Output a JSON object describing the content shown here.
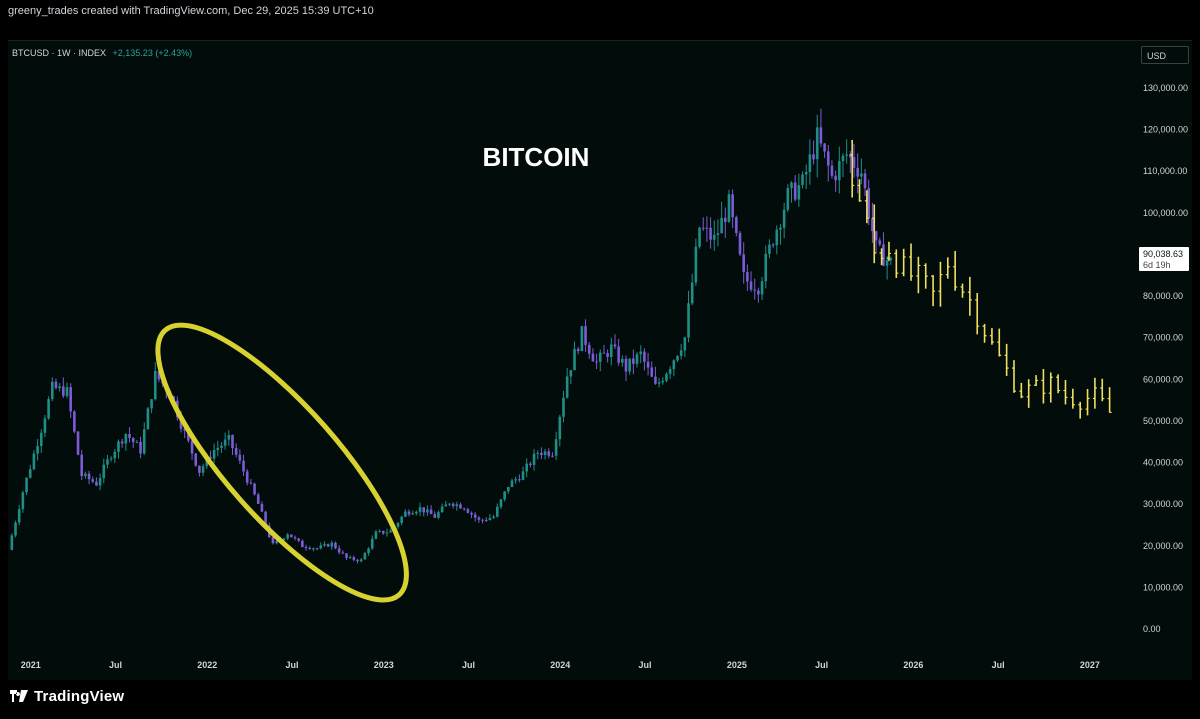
{
  "header": {
    "caption": "greeny_trades created with TradingView.com, Dec 29, 2025 15:39 UTC+10"
  },
  "symbol": {
    "name": "BTCUSD · 1W · INDEX",
    "change": "+2,135.23 (+2.43%)"
  },
  "currency_button": "USD",
  "price_badge": {
    "value": "90,038.63",
    "countdown": "6d 19h"
  },
  "brand": "TradingView",
  "colors": {
    "background": "#020c0b",
    "up_candle": "#1f8f86",
    "down_candle": "#7b5cd6",
    "projection": "#f0e060",
    "annotation_ellipse": "#d8d230"
  },
  "chart_data": {
    "type": "candlestick",
    "title": "BITCOIN",
    "y_ticks": [
      "130,000.00",
      "120,000.00",
      "110,000.00",
      "100,000.00",
      "80,000.00",
      "70,000.00",
      "60,000.00",
      "50,000.00",
      "40,000.00",
      "30,000.00",
      "20,000.00",
      "10,000.00",
      "0.00"
    ],
    "y_tick_values": [
      130000,
      120000,
      110000,
      100000,
      80000,
      70000,
      60000,
      50000,
      40000,
      30000,
      20000,
      10000,
      0
    ],
    "ylim": [
      0,
      130000
    ],
    "x_ticks": [
      "2021",
      "Jul",
      "2022",
      "Jul",
      "2023",
      "Jul",
      "2024",
      "Jul",
      "2025",
      "Jul",
      "2026",
      "Jul",
      "2027"
    ],
    "x_tick_values": [
      "2021-01",
      "2021-07",
      "2022-01",
      "2022-07",
      "2023-01",
      "2023-07",
      "2024-01",
      "2024-07",
      "2025-01",
      "2025-07",
      "2026-01",
      "2026-07",
      "2027-01"
    ],
    "xlim": [
      "2020-12",
      "2027-04"
    ],
    "price_series": {
      "name": "BTCUSD",
      "dates": [
        "2020-12",
        "2021-01",
        "2021-02",
        "2021-03",
        "2021-04",
        "2021-05",
        "2021-06",
        "2021-07",
        "2021-08",
        "2021-09",
        "2021-10",
        "2021-11",
        "2021-12",
        "2022-01",
        "2022-02",
        "2022-03",
        "2022-04",
        "2022-05",
        "2022-06",
        "2022-07",
        "2022-08",
        "2022-09",
        "2022-10",
        "2022-11",
        "2022-12",
        "2023-01",
        "2023-02",
        "2023-03",
        "2023-04",
        "2023-05",
        "2023-06",
        "2023-07",
        "2023-08",
        "2023-09",
        "2023-10",
        "2023-11",
        "2023-12",
        "2024-01",
        "2024-02",
        "2024-03",
        "2024-04",
        "2024-05",
        "2024-06",
        "2024-07",
        "2024-08",
        "2024-09",
        "2024-10",
        "2024-11",
        "2024-12",
        "2025-01",
        "2025-02",
        "2025-03",
        "2025-04",
        "2025-05",
        "2025-06",
        "2025-07",
        "2025-08",
        "2025-09",
        "2025-10",
        "2025-11",
        "2025-12"
      ],
      "values": [
        19000,
        33000,
        45000,
        58000,
        57000,
        37000,
        35000,
        42000,
        47000,
        43000,
        61000,
        57000,
        47000,
        38000,
        43000,
        45500,
        38000,
        30000,
        20000,
        23000,
        20000,
        19400,
        20500,
        17000,
        16500,
        23000,
        23500,
        28000,
        29000,
        27000,
        30500,
        29300,
        26000,
        27000,
        34500,
        37500,
        42500,
        42500,
        61000,
        71000,
        64000,
        67500,
        62700,
        66000,
        58000,
        63500,
        70000,
        96500,
        93500,
        102000,
        84000,
        82500,
        94000,
        104000,
        107000,
        118000,
        108500,
        114000,
        110000,
        91000,
        88000
      ]
    },
    "projection_series": {
      "name": "",
      "dates": [
        "2025-09",
        "2025-10",
        "2025-11",
        "2025-12",
        "2026-01",
        "2026-02",
        "2026-03",
        "2026-04",
        "2026-05",
        "2026-06",
        "2026-07",
        "2026-08",
        "2026-09",
        "2026-10",
        "2026-11",
        "2026-12",
        "2027-01",
        "2027-02",
        "2027-03"
      ],
      "values": [
        114000,
        103000,
        90000,
        92000,
        86000,
        84000,
        80000,
        88000,
        82000,
        76000,
        68000,
        62000,
        57000,
        58000,
        59000,
        56000,
        55000,
        56000,
        52000
      ]
    },
    "annotations": [
      {
        "type": "ellipse",
        "from_date": "2021-11",
        "to_date": "2023-02",
        "price_range": [
          10000,
          70000
        ]
      }
    ],
    "grid": false,
    "legend": "none"
  }
}
